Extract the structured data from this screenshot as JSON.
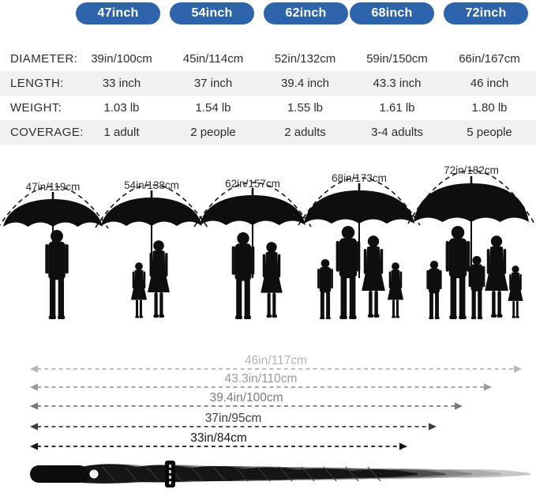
{
  "size_badges": [
    {
      "label": "47inch"
    },
    {
      "label": "54inch"
    },
    {
      "label": "62inch"
    },
    {
      "label": "68inch"
    },
    {
      "label": "72inch"
    }
  ],
  "spec_table": {
    "rows": [
      {
        "label": "DIAMETER:",
        "values": [
          "39in/100cm",
          "45in/114cm",
          "52in/132cm",
          "59in/150cm",
          "66in/167cm"
        ]
      },
      {
        "label": "LENGTH:",
        "values": [
          "33 inch",
          "37 inch",
          "39.4 inch",
          "43.3 inch",
          "46 inch"
        ]
      },
      {
        "label": "WEIGHT:",
        "values": [
          "1.03 lb",
          "1.54 lb",
          "1.55 lb",
          "1.61 lb",
          "1.80 lb"
        ]
      },
      {
        "label": "COVERAGE:",
        "values": [
          "1 adult",
          "2 people",
          "2 adults",
          "3-4 adults",
          "5 people"
        ]
      }
    ]
  },
  "umbrellas": [
    {
      "size": "47inch",
      "arc_label": "47in/119cm",
      "people": [
        "man"
      ]
    },
    {
      "size": "54inch",
      "arc_label": "54in/138cm",
      "people": [
        "girl",
        "woman"
      ]
    },
    {
      "size": "62inch",
      "arc_label": "62in/157cm",
      "people": [
        "man",
        "woman"
      ]
    },
    {
      "size": "68inch",
      "arc_label": "68in/173cm",
      "people": [
        "boy",
        "man",
        "woman",
        "girl"
      ]
    },
    {
      "size": "72inch",
      "arc_label": "72in/182cm",
      "people": [
        "boy",
        "man",
        "boy",
        "woman",
        "girl"
      ]
    }
  ],
  "length_arrows": [
    {
      "label": "46in/117cm",
      "color": "#b5b5b5"
    },
    {
      "label": "43.3in/110cm",
      "color": "#9b9b9b"
    },
    {
      "label": "39.4in/100cm",
      "color": "#7a7a7a"
    },
    {
      "label": "37in/95cm",
      "color": "#3e3e3e"
    },
    {
      "label": "33in/84cm",
      "color": "#161616"
    }
  ],
  "colors": {
    "badge_blue": "#2e64ab",
    "row_stripe": "#f1f1f1",
    "silhouette_black": "#0e0e0e",
    "closed_umbrella_ghosts": [
      "#c6c6c6",
      "#acacac",
      "#858585",
      "#4e4e4e",
      "#151515"
    ]
  }
}
